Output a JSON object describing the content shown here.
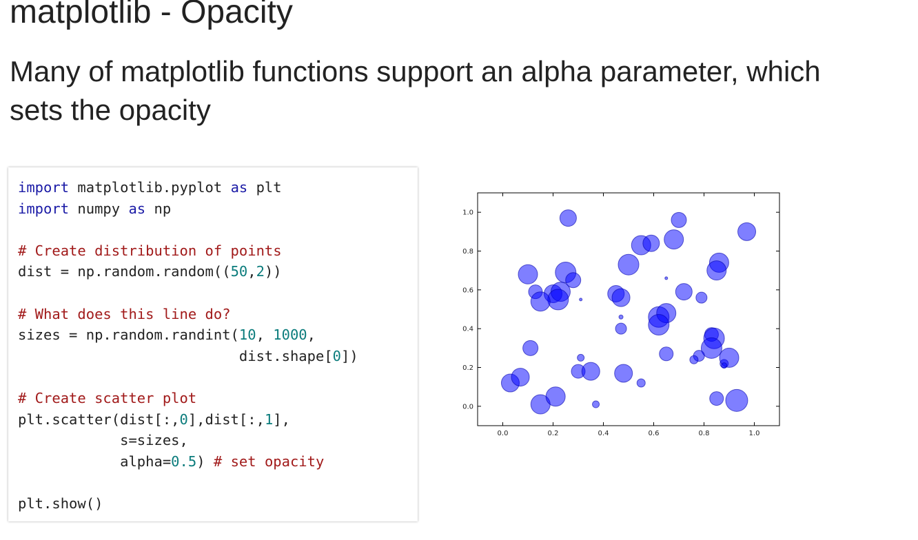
{
  "slide": {
    "title": "matplotlib - Opacity",
    "subtitle": "Many of matplotlib functions support an alpha parameter, which sets the opacity"
  },
  "code": {
    "lines": [
      [
        {
          "t": "import",
          "c": "kw"
        },
        {
          "t": " matplotlib.pyplot "
        },
        {
          "t": "as",
          "c": "kw"
        },
        {
          "t": " plt"
        }
      ],
      [
        {
          "t": "import",
          "c": "kw"
        },
        {
          "t": " numpy "
        },
        {
          "t": "as",
          "c": "kw"
        },
        {
          "t": " np"
        }
      ],
      [],
      [
        {
          "t": "# Create distribution of points",
          "c": "cm"
        }
      ],
      [
        {
          "t": "dist = np.random.random(("
        },
        {
          "t": "50",
          "c": "nm"
        },
        {
          "t": ","
        },
        {
          "t": "2",
          "c": "nm"
        },
        {
          "t": "))"
        }
      ],
      [],
      [
        {
          "t": "# What does this line do?",
          "c": "cm"
        }
      ],
      [
        {
          "t": "sizes = np.random.randint("
        },
        {
          "t": "10",
          "c": "nm"
        },
        {
          "t": ", "
        },
        {
          "t": "1000",
          "c": "nm"
        },
        {
          "t": ","
        }
      ],
      [
        {
          "t": "                          dist.shape["
        },
        {
          "t": "0",
          "c": "nm"
        },
        {
          "t": "])"
        }
      ],
      [],
      [
        {
          "t": "# Create scatter plot",
          "c": "cm"
        }
      ],
      [
        {
          "t": "plt.scatter(dist[:,"
        },
        {
          "t": "0",
          "c": "nm"
        },
        {
          "t": "],dist[:,"
        },
        {
          "t": "1",
          "c": "nm"
        },
        {
          "t": "],"
        }
      ],
      [
        {
          "t": "            s=sizes,"
        }
      ],
      [
        {
          "t": "            alpha="
        },
        {
          "t": "0.5",
          "c": "nm"
        },
        {
          "t": ") "
        },
        {
          "t": "# set opacity",
          "c": "cm"
        }
      ],
      [],
      [
        {
          "t": "plt.show()"
        }
      ]
    ]
  },
  "chart_data": {
    "type": "scatter",
    "title": "",
    "xlabel": "",
    "ylabel": "",
    "xlim": [
      -0.1,
      1.1
    ],
    "ylim": [
      -0.1,
      1.1
    ],
    "xticks": [
      "0.0",
      "0.2",
      "0.4",
      "0.6",
      "0.8",
      "1.0"
    ],
    "yticks": [
      "0.0",
      "0.2",
      "0.4",
      "0.6",
      "0.8",
      "1.0"
    ],
    "grid": false,
    "color": "#0000ff",
    "alpha": 0.5,
    "points": [
      {
        "x": 0.26,
        "y": 0.97,
        "s": 12
      },
      {
        "x": 0.7,
        "y": 0.96,
        "s": 11
      },
      {
        "x": 0.97,
        "y": 0.9,
        "s": 13
      },
      {
        "x": 0.55,
        "y": 0.83,
        "s": 14
      },
      {
        "x": 0.59,
        "y": 0.84,
        "s": 12
      },
      {
        "x": 0.68,
        "y": 0.86,
        "s": 14
      },
      {
        "x": 0.5,
        "y": 0.73,
        "s": 15
      },
      {
        "x": 0.86,
        "y": 0.74,
        "s": 14
      },
      {
        "x": 0.85,
        "y": 0.7,
        "s": 14
      },
      {
        "x": 0.1,
        "y": 0.68,
        "s": 14
      },
      {
        "x": 0.25,
        "y": 0.69,
        "s": 15
      },
      {
        "x": 0.28,
        "y": 0.65,
        "s": 11
      },
      {
        "x": 0.65,
        "y": 0.66,
        "s": 2
      },
      {
        "x": 0.13,
        "y": 0.59,
        "s": 10
      },
      {
        "x": 0.2,
        "y": 0.58,
        "s": 13
      },
      {
        "x": 0.23,
        "y": 0.59,
        "s": 14
      },
      {
        "x": 0.22,
        "y": 0.55,
        "s": 15
      },
      {
        "x": 0.15,
        "y": 0.54,
        "s": 14
      },
      {
        "x": 0.31,
        "y": 0.55,
        "s": 2
      },
      {
        "x": 0.45,
        "y": 0.58,
        "s": 12
      },
      {
        "x": 0.47,
        "y": 0.56,
        "s": 13
      },
      {
        "x": 0.72,
        "y": 0.59,
        "s": 12
      },
      {
        "x": 0.79,
        "y": 0.56,
        "s": 8
      },
      {
        "x": 0.47,
        "y": 0.46,
        "s": 3
      },
      {
        "x": 0.62,
        "y": 0.46,
        "s": 15
      },
      {
        "x": 0.65,
        "y": 0.48,
        "s": 14
      },
      {
        "x": 0.62,
        "y": 0.42,
        "s": 15
      },
      {
        "x": 0.47,
        "y": 0.4,
        "s": 8
      },
      {
        "x": 0.83,
        "y": 0.37,
        "s": 10
      },
      {
        "x": 0.84,
        "y": 0.35,
        "s": 15
      },
      {
        "x": 0.83,
        "y": 0.3,
        "s": 15
      },
      {
        "x": 0.11,
        "y": 0.3,
        "s": 11
      },
      {
        "x": 0.65,
        "y": 0.27,
        "s": 10
      },
      {
        "x": 0.78,
        "y": 0.26,
        "s": 8
      },
      {
        "x": 0.76,
        "y": 0.24,
        "s": 6
      },
      {
        "x": 0.88,
        "y": 0.22,
        "s": 6
      },
      {
        "x": 0.9,
        "y": 0.25,
        "s": 14
      },
      {
        "x": 0.31,
        "y": 0.25,
        "s": 5
      },
      {
        "x": 0.3,
        "y": 0.18,
        "s": 10
      },
      {
        "x": 0.35,
        "y": 0.18,
        "s": 13
      },
      {
        "x": 0.48,
        "y": 0.17,
        "s": 13
      },
      {
        "x": 0.55,
        "y": 0.12,
        "s": 6
      },
      {
        "x": 0.03,
        "y": 0.12,
        "s": 13
      },
      {
        "x": 0.07,
        "y": 0.15,
        "s": 13
      },
      {
        "x": 0.15,
        "y": 0.01,
        "s": 14
      },
      {
        "x": 0.21,
        "y": 0.05,
        "s": 14
      },
      {
        "x": 0.37,
        "y": 0.01,
        "s": 5
      },
      {
        "x": 0.85,
        "y": 0.04,
        "s": 10
      },
      {
        "x": 0.93,
        "y": 0.03,
        "s": 16
      },
      {
        "x": 0.88,
        "y": 0.21,
        "s": 4
      }
    ]
  }
}
